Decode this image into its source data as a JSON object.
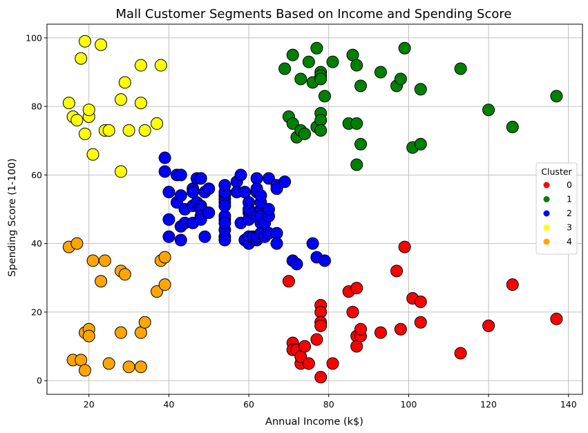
{
  "chart_data": {
    "type": "scatter",
    "title": "Mall Customer Segments Based on Income and Spending Score",
    "xlabel": "Annual Income (k$)",
    "ylabel": "Spending Score (1-100)",
    "xlim": [
      9.5,
      143.5
    ],
    "ylim": [
      -4,
      104
    ],
    "xticks": [
      20,
      40,
      60,
      80,
      100,
      120,
      140
    ],
    "yticks": [
      0,
      20,
      40,
      60,
      80,
      100
    ],
    "grid": true,
    "legend": {
      "title": "Cluster",
      "placement": "center-right"
    },
    "series": [
      {
        "name": "0",
        "color": "#ff0000",
        "points": [
          [
            70,
            29
          ],
          [
            71,
            11
          ],
          [
            71,
            9
          ],
          [
            72,
            9
          ],
          [
            73,
            5
          ],
          [
            73,
            7
          ],
          [
            74,
            10
          ],
          [
            75,
            5
          ],
          [
            77,
            12
          ],
          [
            78,
            22
          ],
          [
            78,
            20
          ],
          [
            78,
            17
          ],
          [
            78,
            16
          ],
          [
            78,
            1
          ],
          [
            81,
            5
          ],
          [
            85,
            26
          ],
          [
            86,
            20
          ],
          [
            87,
            27
          ],
          [
            87,
            13
          ],
          [
            87,
            10
          ],
          [
            88,
            13
          ],
          [
            88,
            15
          ],
          [
            93,
            14
          ],
          [
            97,
            32
          ],
          [
            98,
            15
          ],
          [
            99,
            39
          ],
          [
            101,
            24
          ],
          [
            103,
            23
          ],
          [
            103,
            17
          ],
          [
            113,
            8
          ],
          [
            120,
            16
          ],
          [
            126,
            28
          ],
          [
            137,
            18
          ]
        ]
      },
      {
        "name": "1",
        "color": "#008000",
        "points": [
          [
            69,
            91
          ],
          [
            70,
            77
          ],
          [
            71,
            95
          ],
          [
            71,
            75
          ],
          [
            72,
            71
          ],
          [
            73,
            73
          ],
          [
            73,
            88
          ],
          [
            74,
            72
          ],
          [
            75,
            93
          ],
          [
            76,
            87
          ],
          [
            77,
            97
          ],
          [
            77,
            74
          ],
          [
            78,
            90
          ],
          [
            78,
            89
          ],
          [
            78,
            88
          ],
          [
            78,
            78
          ],
          [
            78,
            76
          ],
          [
            78,
            73
          ],
          [
            79,
            83
          ],
          [
            81,
            93
          ],
          [
            85,
            75
          ],
          [
            86,
            95
          ],
          [
            87,
            63
          ],
          [
            87,
            92
          ],
          [
            87,
            75
          ],
          [
            88,
            86
          ],
          [
            88,
            69
          ],
          [
            93,
            90
          ],
          [
            97,
            86
          ],
          [
            98,
            88
          ],
          [
            99,
            97
          ],
          [
            101,
            68
          ],
          [
            103,
            85
          ],
          [
            103,
            69
          ],
          [
            113,
            91
          ],
          [
            120,
            79
          ],
          [
            126,
            74
          ],
          [
            137,
            83
          ]
        ]
      },
      {
        "name": "2",
        "color": "#0000ff",
        "points": [
          [
            39,
            65
          ],
          [
            39,
            61
          ],
          [
            40,
            55
          ],
          [
            40,
            47
          ],
          [
            40,
            42
          ],
          [
            42,
            60
          ],
          [
            42,
            52
          ],
          [
            43,
            60
          ],
          [
            43,
            54
          ],
          [
            43,
            45
          ],
          [
            43,
            41
          ],
          [
            44,
            50
          ],
          [
            44,
            46
          ],
          [
            46,
            51
          ],
          [
            46,
            46
          ],
          [
            46,
            56
          ],
          [
            46,
            55
          ],
          [
            47,
            52
          ],
          [
            47,
            59
          ],
          [
            48,
            51
          ],
          [
            48,
            59
          ],
          [
            48,
            50
          ],
          [
            48,
            48
          ],
          [
            48,
            59
          ],
          [
            48,
            47
          ],
          [
            49,
            55
          ],
          [
            49,
            42
          ],
          [
            50,
            49
          ],
          [
            50,
            56
          ],
          [
            54,
            47
          ],
          [
            54,
            54
          ],
          [
            54,
            53
          ],
          [
            54,
            48
          ],
          [
            54,
            52
          ],
          [
            54,
            42
          ],
          [
            54,
            51
          ],
          [
            54,
            55
          ],
          [
            54,
            41
          ],
          [
            54,
            44
          ],
          [
            54,
            57
          ],
          [
            54,
            46
          ],
          [
            57,
            58
          ],
          [
            57,
            55
          ],
          [
            58,
            60
          ],
          [
            58,
            46
          ],
          [
            59,
            55
          ],
          [
            59,
            41
          ],
          [
            60,
            49
          ],
          [
            60,
            40
          ],
          [
            60,
            42
          ],
          [
            60,
            52
          ],
          [
            60,
            47
          ],
          [
            60,
            50
          ],
          [
            61,
            42
          ],
          [
            61,
            49
          ],
          [
            62,
            41
          ],
          [
            62,
            48
          ],
          [
            62,
            59
          ],
          [
            62,
            55
          ],
          [
            62,
            56
          ],
          [
            62,
            42
          ],
          [
            63,
            50
          ],
          [
            63,
            46
          ],
          [
            63,
            43
          ],
          [
            63,
            48
          ],
          [
            63,
            52
          ],
          [
            63,
            54
          ],
          [
            64,
            42
          ],
          [
            64,
            46
          ],
          [
            65,
            48
          ],
          [
            65,
            50
          ],
          [
            65,
            43
          ],
          [
            65,
            59
          ],
          [
            67,
            43
          ],
          [
            67,
            57
          ],
          [
            67,
            56
          ],
          [
            67,
            40
          ],
          [
            69,
            58
          ],
          [
            71,
            35
          ],
          [
            72,
            34
          ],
          [
            76,
            40
          ],
          [
            77,
            36
          ],
          [
            79,
            35
          ]
        ]
      },
      {
        "name": "3",
        "color": "#ffff00",
        "points": [
          [
            15,
            81
          ],
          [
            16,
            77
          ],
          [
            17,
            76
          ],
          [
            18,
            94
          ],
          [
            19,
            72
          ],
          [
            19,
            99
          ],
          [
            20,
            77
          ],
          [
            20,
            79
          ],
          [
            21,
            66
          ],
          [
            23,
            98
          ],
          [
            24,
            73
          ],
          [
            25,
            73
          ],
          [
            28,
            82
          ],
          [
            28,
            61
          ],
          [
            29,
            87
          ],
          [
            30,
            73
          ],
          [
            33,
            92
          ],
          [
            33,
            81
          ],
          [
            34,
            73
          ],
          [
            37,
            75
          ],
          [
            38,
            92
          ]
        ]
      },
      {
        "name": "4",
        "color": "#ffa500",
        "points": [
          [
            15,
            39
          ],
          [
            16,
            6
          ],
          [
            17,
            40
          ],
          [
            18,
            6
          ],
          [
            19,
            3
          ],
          [
            19,
            14
          ],
          [
            20,
            15
          ],
          [
            20,
            13
          ],
          [
            21,
            35
          ],
          [
            23,
            29
          ],
          [
            24,
            35
          ],
          [
            25,
            5
          ],
          [
            28,
            14
          ],
          [
            28,
            32
          ],
          [
            29,
            31
          ],
          [
            30,
            4
          ],
          [
            33,
            4
          ],
          [
            33,
            14
          ],
          [
            34,
            17
          ],
          [
            37,
            26
          ],
          [
            38,
            35
          ],
          [
            39,
            36
          ],
          [
            39,
            28
          ]
        ]
      }
    ]
  }
}
